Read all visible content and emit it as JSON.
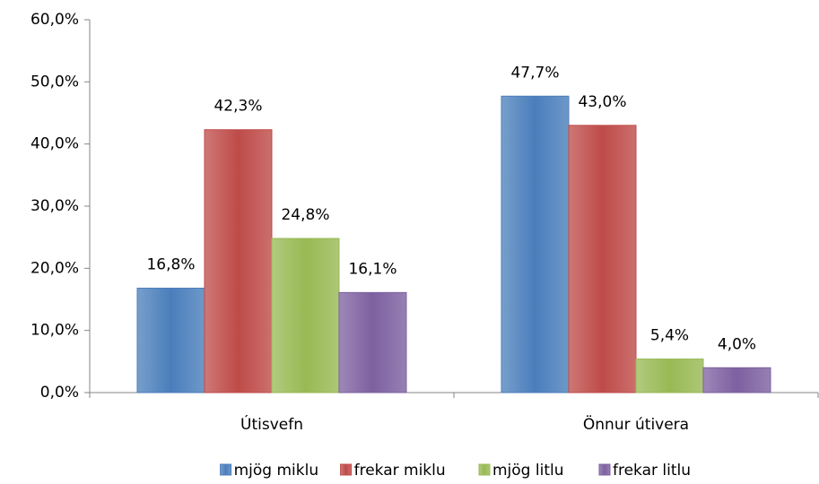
{
  "chart_data": {
    "type": "bar",
    "categories": [
      "Útisvefn",
      "Önnur útivera"
    ],
    "series": [
      {
        "name": "mjög miklu",
        "color": "#4a7ebb",
        "values": [
          16.8,
          47.7
        ],
        "value_labels": [
          "16,8%",
          "47,7%"
        ]
      },
      {
        "name": "frekar miklu",
        "color": "#be4b48",
        "values": [
          42.3,
          43.0
        ],
        "value_labels": [
          "42,3%",
          "43,0%"
        ]
      },
      {
        "name": "mjög litlu",
        "color": "#98b954",
        "values": [
          24.8,
          5.4
        ],
        "value_labels": [
          "24,8%",
          "5,4%"
        ]
      },
      {
        "name": "frekar litlu",
        "color": "#7d60a0",
        "values": [
          16.1,
          4.0
        ],
        "value_labels": [
          "16,1%",
          "4,0%"
        ]
      }
    ],
    "ylim": [
      0,
      60
    ],
    "yticks": [
      {
        "value": 0,
        "label": "0,0%"
      },
      {
        "value": 10,
        "label": "10,0%"
      },
      {
        "value": 20,
        "label": "20,0%"
      },
      {
        "value": 30,
        "label": "30,0%"
      },
      {
        "value": 40,
        "label": "40,0%"
      },
      {
        "value": 50,
        "label": "50,0%"
      },
      {
        "value": 60,
        "label": "60,0%"
      }
    ],
    "legend": "bottom"
  }
}
